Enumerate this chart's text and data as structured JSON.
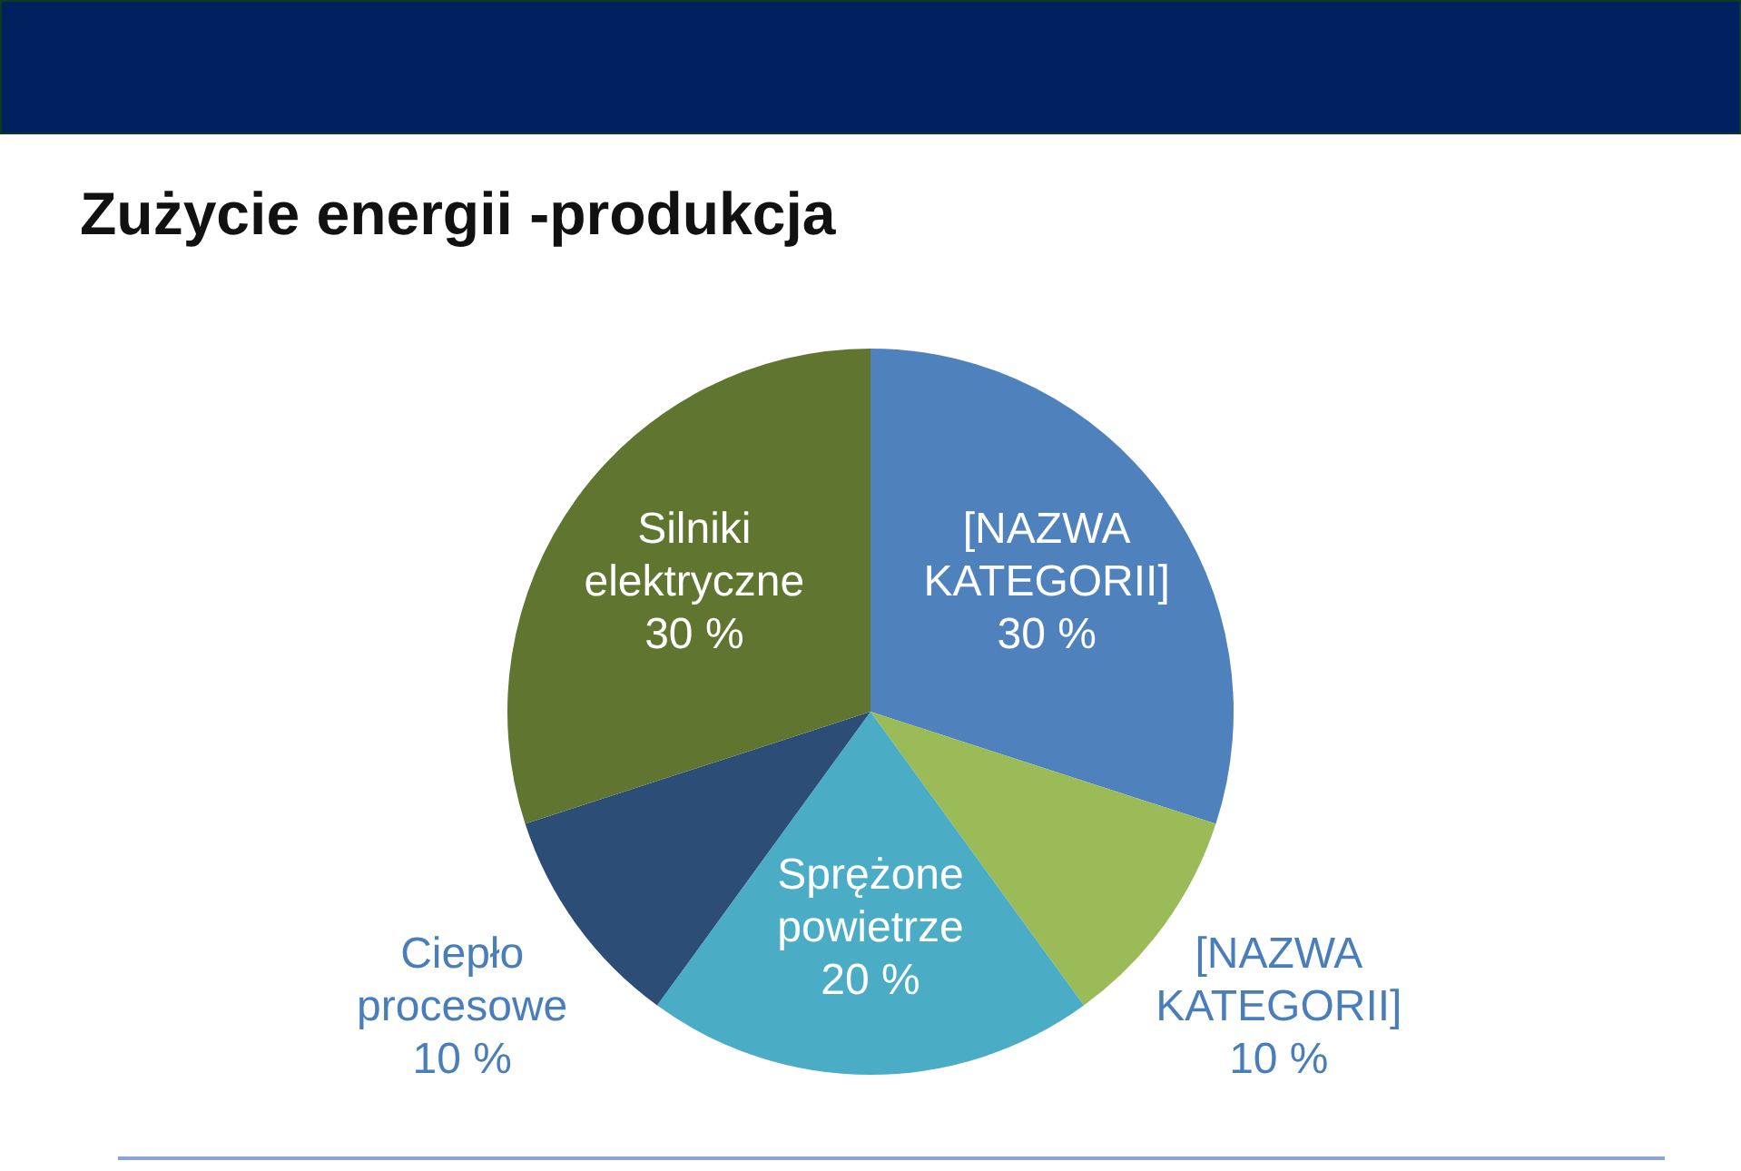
{
  "chart_data": {
    "type": "pie",
    "title": "Zużycie energii -produkcja",
    "categories": [
      "[NAZWA KATEGORII]",
      "[NAZWA KATEGORII]",
      "Sprężone powietrze",
      "Ciepło procesowe",
      "Silniki elektryczne"
    ],
    "values": [
      30,
      10,
      20,
      10,
      30
    ],
    "value_labels": [
      "30 %",
      "10 %",
      "20 %",
      "10 %",
      "30 %"
    ],
    "colors": [
      "#4f81bd",
      "#9bbb59",
      "#4bacc6",
      "#2c4d75",
      "#5f7530"
    ]
  }
}
